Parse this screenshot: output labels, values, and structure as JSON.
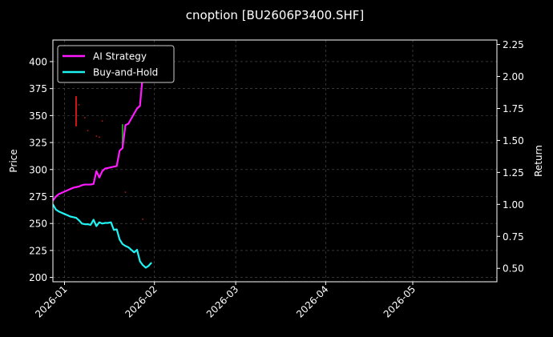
{
  "chart_data": {
    "type": "line",
    "title": "cnoption [BU2606P3400.SHF]",
    "xlabel": "",
    "ylabel_left": "Price",
    "ylabel_right": "Return",
    "x_range": [
      "2025-12-28",
      "2026-05-30"
    ],
    "x_ticks": [
      "2026-01",
      "2026-02",
      "2026-03",
      "2026-04",
      "2026-05"
    ],
    "x_tick_dates": [
      "2026-01-01",
      "2026-02-01",
      "2026-03-01",
      "2026-04-01",
      "2026-05-01"
    ],
    "ylim_left": [
      196,
      420
    ],
    "yticks_left": [
      "200",
      "225",
      "250",
      "275",
      "300",
      "325",
      "350",
      "375",
      "400"
    ],
    "ylim_right": [
      0.395,
      2.285
    ],
    "yticks_right": [
      "0.50",
      "0.75",
      "1.00",
      "1.25",
      "1.50",
      "1.75",
      "2.00",
      "2.25"
    ],
    "grid": true,
    "legend_position": "top-left",
    "background": "#000000",
    "series": [
      {
        "name": "AI Strategy",
        "axis": "right",
        "color": "#ff1aff",
        "x": [
          "2025-12-28",
          "2025-12-29",
          "2025-12-30",
          "2025-12-31",
          "2026-01-01",
          "2026-01-02",
          "2026-01-03",
          "2026-01-04",
          "2026-01-05",
          "2026-01-06",
          "2026-01-07",
          "2026-01-08",
          "2026-01-09",
          "2026-01-10",
          "2026-01-11",
          "2026-01-12",
          "2026-01-13",
          "2026-01-14",
          "2026-01-15",
          "2026-01-16",
          "2026-01-17",
          "2026-01-18",
          "2026-01-19",
          "2026-01-20",
          "2026-01-21",
          "2026-01-22",
          "2026-01-23",
          "2026-01-24",
          "2026-01-25",
          "2026-01-26",
          "2026-01-27",
          "2026-01-28"
        ],
        "values": [
          1.03,
          1.06,
          1.08,
          1.09,
          1.1,
          1.11,
          1.12,
          1.13,
          1.135,
          1.14,
          1.15,
          1.155,
          1.155,
          1.155,
          1.16,
          1.26,
          1.21,
          1.26,
          1.28,
          1.285,
          1.29,
          1.295,
          1.3,
          1.42,
          1.44,
          1.62,
          1.63,
          1.67,
          1.71,
          1.75,
          1.77,
          2.02
        ]
      },
      {
        "name": "Buy-and-Hold",
        "axis": "right",
        "color": "#1ff2f2",
        "x": [
          "2025-12-28",
          "2025-12-29",
          "2025-12-30",
          "2025-12-31",
          "2026-01-01",
          "2026-01-02",
          "2026-01-03",
          "2026-01-04",
          "2026-01-05",
          "2026-01-06",
          "2026-01-07",
          "2026-01-08",
          "2026-01-09",
          "2026-01-10",
          "2026-01-11",
          "2026-01-12",
          "2026-01-13",
          "2026-01-14",
          "2026-01-15",
          "2026-01-16",
          "2026-01-17",
          "2026-01-18",
          "2026-01-19",
          "2026-01-20",
          "2026-01-21",
          "2026-01-22",
          "2026-01-23",
          "2026-01-24",
          "2026-01-25",
          "2026-01-26",
          "2026-01-27",
          "2026-01-28",
          "2026-01-29",
          "2026-01-30",
          "2026-01-31"
        ],
        "values": [
          1.0,
          0.96,
          0.945,
          0.935,
          0.925,
          0.915,
          0.905,
          0.9,
          0.895,
          0.875,
          0.85,
          0.845,
          0.845,
          0.84,
          0.88,
          0.83,
          0.86,
          0.85,
          0.855,
          0.855,
          0.86,
          0.8,
          0.805,
          0.725,
          0.69,
          0.675,
          0.665,
          0.645,
          0.625,
          0.645,
          0.555,
          0.525,
          0.505,
          0.52,
          0.545
        ]
      }
    ],
    "price_marks": {
      "axis": "left",
      "bars": [
        {
          "x": "2026-01-05",
          "low": 340,
          "high": 368,
          "color": "#ff1a1a"
        },
        {
          "x": "2026-01-21",
          "low": 320,
          "high": 342,
          "color": "#19c019"
        }
      ],
      "points": [
        {
          "x": "2026-01-06",
          "y": 360
        },
        {
          "x": "2026-01-08",
          "y": 348
        },
        {
          "x": "2026-01-09",
          "y": 336
        },
        {
          "x": "2026-01-12",
          "y": 331
        },
        {
          "x": "2026-01-13",
          "y": 330
        },
        {
          "x": "2026-01-14",
          "y": 345
        },
        {
          "x": "2026-01-22",
          "y": 279
        },
        {
          "x": "2026-01-28",
          "y": 254
        }
      ]
    }
  }
}
